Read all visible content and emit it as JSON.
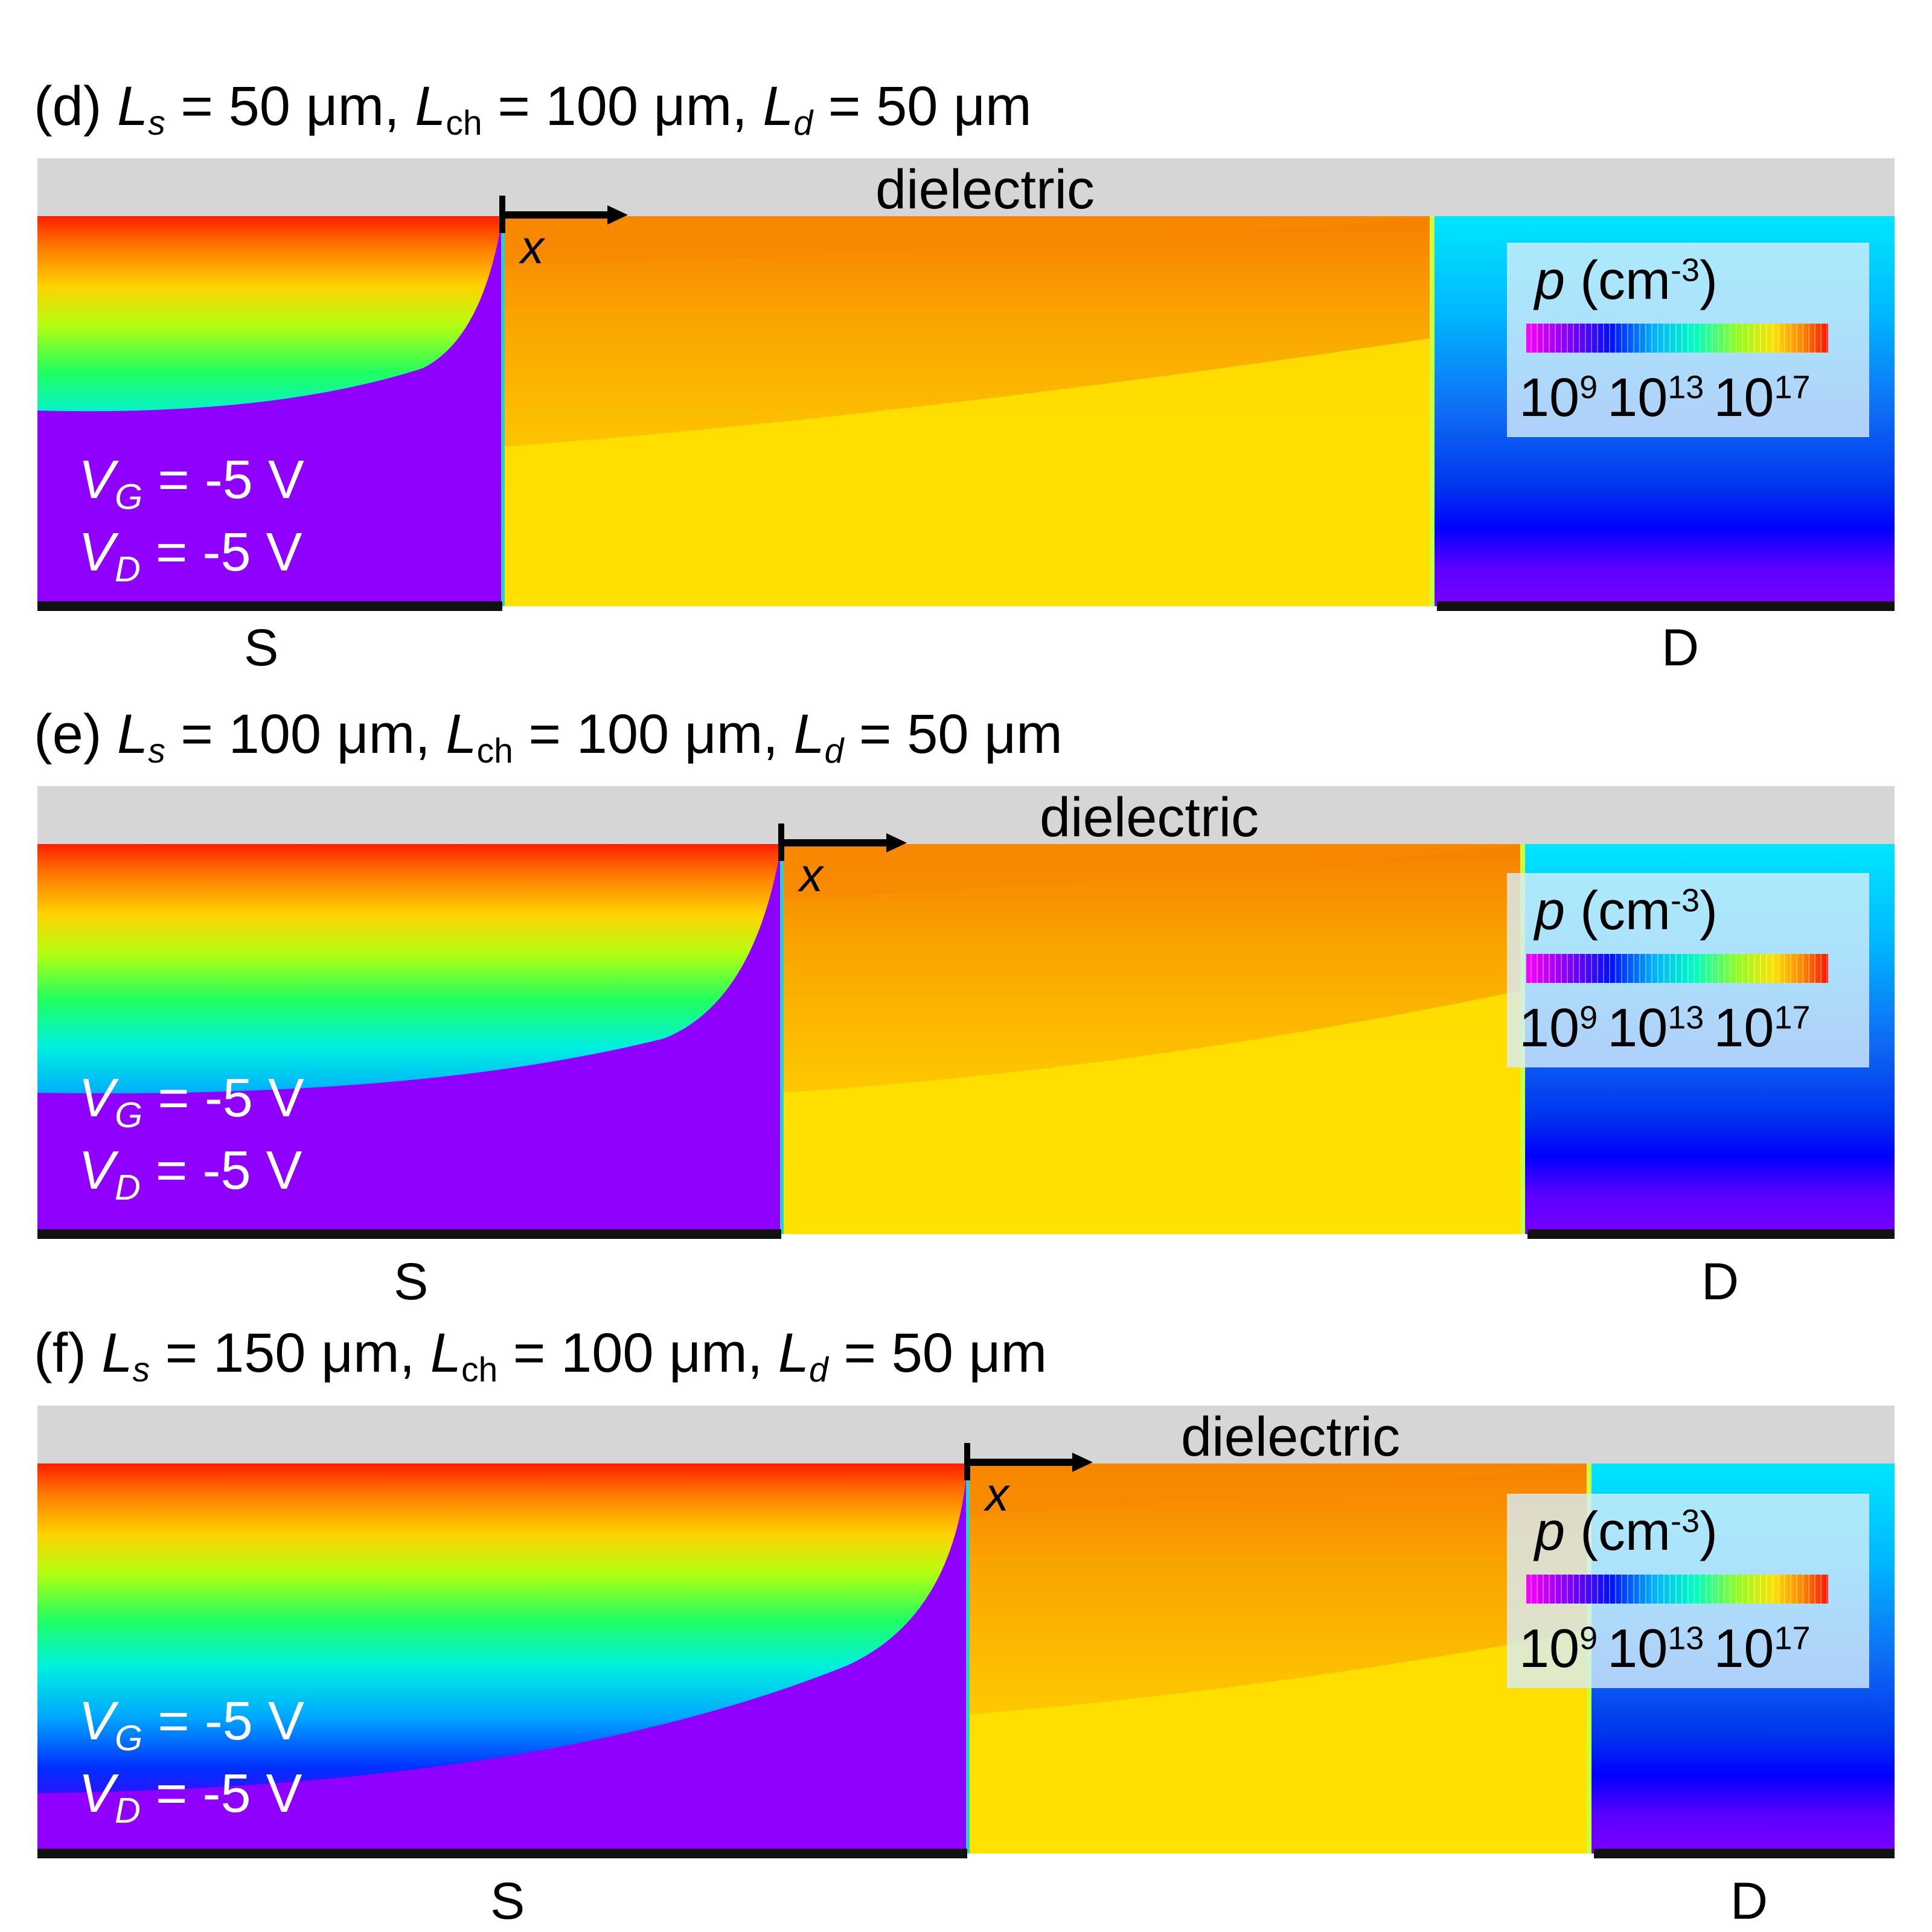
{
  "panels": [
    {
      "label": "(d)",
      "params": {
        "Ls": "50 μm",
        "Lch": "100 μm",
        "Ld": "50 μm"
      },
      "dielectric_label": "dielectric",
      "x_label": "x",
      "source_label": "S",
      "drain_label": "D",
      "VG": "-5 V",
      "VD": "-5 V"
    },
    {
      "label": "(e)",
      "params": {
        "Ls": "100 μm",
        "Lch": "100 μm",
        "Ld": "50 μm"
      },
      "dielectric_label": "dielectric",
      "x_label": "x",
      "source_label": "S",
      "drain_label": "D",
      "VG": "-5 V",
      "VD": "-5 V"
    },
    {
      "label": "(f)",
      "params": {
        "Ls": "150 μm",
        "Lch": "100 μm",
        "Ld": "50 μm"
      },
      "dielectric_label": "dielectric",
      "x_label": "x",
      "source_label": "S",
      "drain_label": "D",
      "VG": "-5 V",
      "VD": "-5 V"
    }
  ],
  "legend": {
    "symbol": "p",
    "unit": "(cm",
    "unit_exp": "-3",
    "unit_close": ")",
    "tick_base": "10",
    "ticks": [
      "9",
      "13",
      "17"
    ]
  },
  "colors": {
    "dielectric": "#d6d6d6",
    "contact": "#111111",
    "channel_top": "#f79a10",
    "channel_bottom": "#ffe100",
    "depleted": "#8f00ff",
    "drain_top": "#00e4ff",
    "drain_bottom": "#7a00ff"
  }
}
